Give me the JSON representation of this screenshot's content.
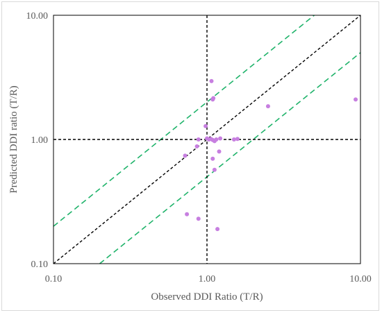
{
  "chart_data": {
    "type": "scatter",
    "title": "",
    "xlabel": "Observed DDI Ratio (T/R)",
    "ylabel": "Predicted DDI ratio (T/R)",
    "x_scale": "log",
    "y_scale": "log",
    "xlim": [
      0.1,
      10
    ],
    "ylim": [
      0.1,
      10
    ],
    "x_ticks": [
      "0.10",
      "1.00",
      "10.00"
    ],
    "y_ticks": [
      "0.10",
      "1.00",
      "10.00"
    ],
    "grid": false,
    "legend": "none",
    "point_color": "#c77fe0",
    "reference_lines": [
      {
        "kind": "identity",
        "style": "dashed",
        "color": "#000000",
        "slope_factor": 1
      },
      {
        "kind": "upper_2fold",
        "style": "dashed",
        "color": "#1fb36a",
        "slope_factor": 2
      },
      {
        "kind": "lower_2fold",
        "style": "dashed",
        "color": "#1fb36a",
        "slope_factor": 0.5
      },
      {
        "kind": "vertical_unity",
        "style": "dashed",
        "color": "#000000",
        "value": 1
      },
      {
        "kind": "horizontal_unity",
        "style": "dashed",
        "color": "#000000",
        "value": 1
      }
    ],
    "points": [
      {
        "x": 1.07,
        "y": 2.95
      },
      {
        "x": 1.1,
        "y": 2.15
      },
      {
        "x": 1.09,
        "y": 2.1
      },
      {
        "x": 2.5,
        "y": 1.85
      },
      {
        "x": 9.3,
        "y": 2.1
      },
      {
        "x": 0.98,
        "y": 1.28
      },
      {
        "x": 1.0,
        "y": 1.02
      },
      {
        "x": 1.03,
        "y": 1.0
      },
      {
        "x": 1.06,
        "y": 1.01
      },
      {
        "x": 1.09,
        "y": 0.99
      },
      {
        "x": 1.12,
        "y": 0.97
      },
      {
        "x": 1.15,
        "y": 1.0
      },
      {
        "x": 1.22,
        "y": 1.02
      },
      {
        "x": 1.5,
        "y": 1.0
      },
      {
        "x": 1.58,
        "y": 1.01
      },
      {
        "x": 0.88,
        "y": 1.0
      },
      {
        "x": 0.86,
        "y": 0.88
      },
      {
        "x": 1.2,
        "y": 0.8
      },
      {
        "x": 0.72,
        "y": 0.74
      },
      {
        "x": 1.09,
        "y": 0.7
      },
      {
        "x": 1.12,
        "y": 0.57
      },
      {
        "x": 0.74,
        "y": 0.25
      },
      {
        "x": 0.88,
        "y": 0.23
      },
      {
        "x": 1.17,
        "y": 0.19
      }
    ]
  }
}
